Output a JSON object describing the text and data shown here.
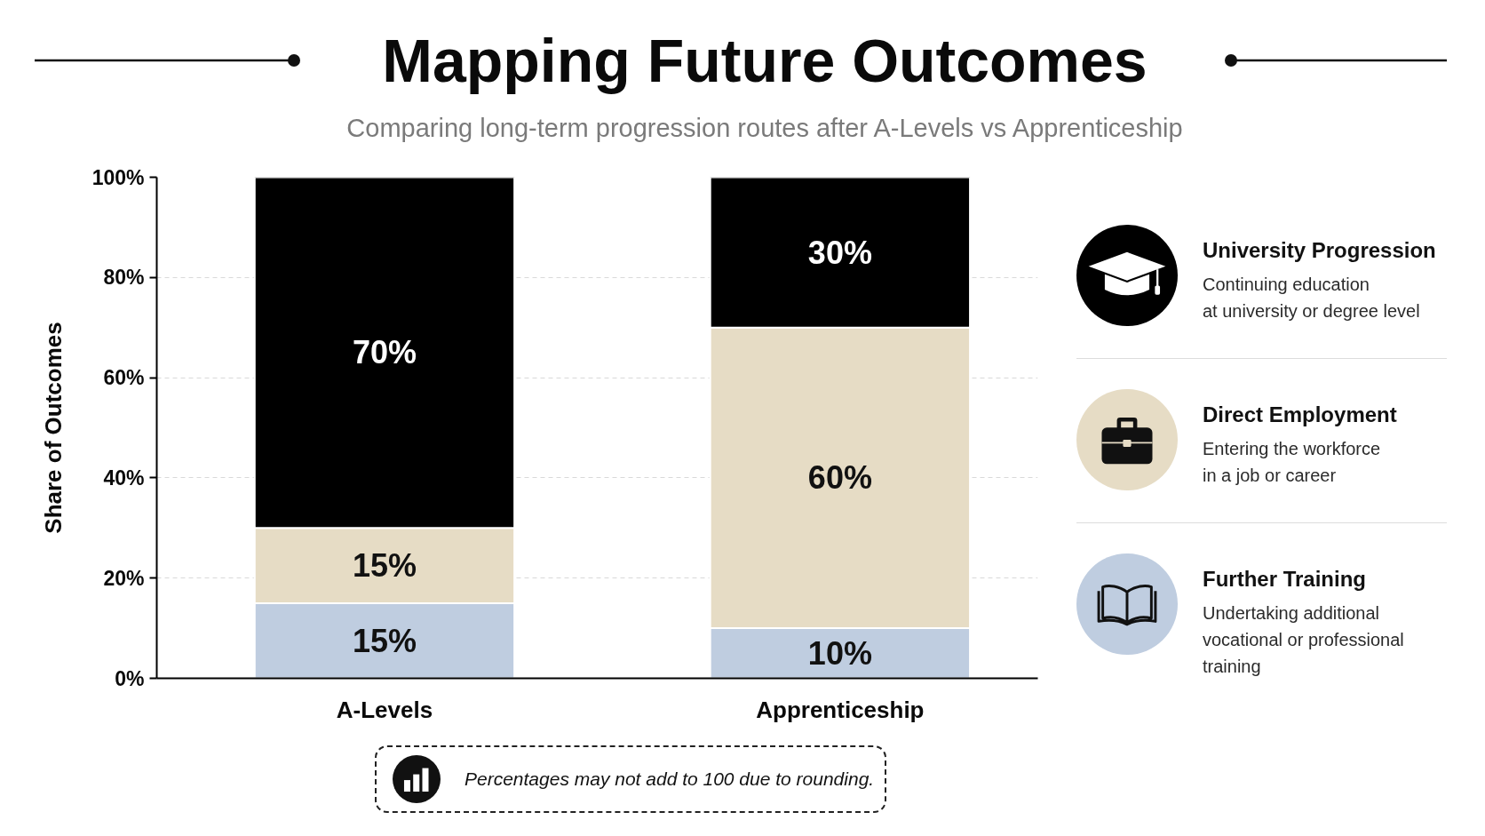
{
  "chart_data": {
    "type": "bar",
    "title": "Mapping Future Outcomes",
    "subtitle": "Comparing long-term progression routes after A-Levels vs Apprenticeship",
    "ylabel": "Share of Outcomes",
    "categories": [
      "A-Levels",
      "Apprenticeship"
    ],
    "stacked": true,
    "series": [
      {
        "name": "Further Training",
        "color": "#bfcde0",
        "values": [
          15,
          10
        ],
        "value_labels": [
          "15%",
          "10%"
        ]
      },
      {
        "name": "Direct Employment",
        "color": "#e6dcc5",
        "values": [
          15,
          60
        ],
        "value_labels": [
          "15%",
          "60%"
        ]
      },
      {
        "name": "University Progression",
        "color": "#000000",
        "values": [
          70,
          30
        ],
        "value_labels": [
          "70%",
          "30%"
        ]
      }
    ],
    "ylim": [
      0,
      100
    ],
    "yticks": [
      {
        "value": 0,
        "label": "0%"
      },
      {
        "value": 20,
        "label": "20%"
      },
      {
        "value": 40,
        "label": "40%"
      },
      {
        "value": 60,
        "label": "60%"
      },
      {
        "value": 80,
        "label": "80%"
      },
      {
        "value": 100,
        "label": "100%"
      }
    ],
    "grid": "y",
    "legend": "right",
    "annotations": [
      "Percentages may not add to 100 due to rounding.",
      "Continuing education\nat university or degree level",
      "Entering the workforce\nin a job or career",
      "Undertaking additional\nvocational or professional\ntraining"
    ]
  }
}
